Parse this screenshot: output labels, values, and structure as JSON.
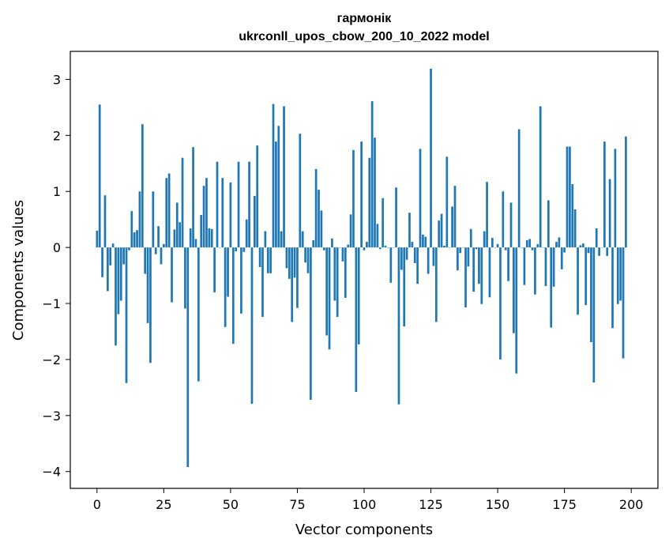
{
  "chart_data": {
    "type": "bar",
    "title": "гармонік",
    "subtitle": "ukrconll_upos_cbow_200_10_2022 model",
    "xlabel": "Vector components",
    "ylabel": "Components values",
    "xlim": [
      -10,
      210
    ],
    "ylim": [
      -4.3,
      3.5
    ],
    "xticks": [
      0,
      25,
      50,
      75,
      100,
      125,
      150,
      175,
      200
    ],
    "yticks": [
      -4,
      -3,
      -2,
      -1,
      0,
      1,
      2,
      3
    ],
    "grid": false,
    "bar_color": "#1f77b4",
    "values": [
      0.3,
      2.55,
      -0.53,
      0.93,
      -0.78,
      -0.32,
      0.07,
      -1.75,
      -1.19,
      -0.95,
      -0.3,
      -2.42,
      -0.05,
      0.65,
      0.27,
      0.31,
      1.0,
      2.2,
      -0.47,
      -1.35,
      -2.06,
      1.0,
      -0.12,
      0.38,
      -0.3,
      0.06,
      1.24,
      1.32,
      -0.98,
      0.32,
      0.8,
      0.45,
      1.6,
      -1.09,
      -3.92,
      0.34,
      1.79,
      0.15,
      -2.39,
      0.58,
      1.1,
      1.24,
      0.34,
      0.33,
      -0.8,
      1.53,
      0.0,
      1.24,
      -1.42,
      -0.88,
      1.16,
      -1.72,
      -0.07,
      1.53,
      -1.18,
      -0.08,
      0.5,
      1.53,
      -2.79,
      0.92,
      1.82,
      -0.35,
      -1.24,
      0.29,
      -0.46,
      -0.46,
      2.56,
      1.89,
      2.17,
      0.29,
      2.52,
      -0.37,
      -0.56,
      -1.33,
      -0.54,
      -1.08,
      2.03,
      0.29,
      -0.27,
      -0.46,
      -2.72,
      0.13,
      1.4,
      1.03,
      0.66,
      -0.05,
      -1.57,
      -1.82,
      0.16,
      -0.95,
      -1.24,
      0.0,
      -0.25,
      -0.9,
      0.05,
      0.59,
      1.74,
      -2.58,
      -1.73,
      1.89,
      -0.05,
      0.1,
      1.6,
      2.61,
      1.96,
      0.42,
      -0.03,
      0.88,
      0.03,
      0.0,
      -0.63,
      0.0,
      1.07,
      -2.8,
      -0.4,
      -1.41,
      -0.22,
      0.62,
      0.1,
      -0.28,
      -0.65,
      1.76,
      0.23,
      0.19,
      -0.47,
      3.19,
      -0.33,
      -1.33,
      0.48,
      0.6,
      0.03,
      1.62,
      0.0,
      0.73,
      1.1,
      -0.41,
      -0.1,
      0.0,
      -1.07,
      -0.34,
      0.33,
      -0.79,
      -0.03,
      -0.65,
      -1.01,
      0.29,
      1.17,
      -0.89,
      0.17,
      0.0,
      0.06,
      -2.0,
      1.0,
      -0.05,
      -0.6,
      0.8,
      -1.53,
      -2.25,
      2.11,
      0.0,
      -0.67,
      0.13,
      0.15,
      -0.05,
      -0.84,
      0.06,
      2.52,
      0.0,
      -0.69,
      0.84,
      -1.43,
      -0.7,
      0.1,
      0.18,
      -0.39,
      -0.09,
      1.8,
      1.8,
      1.13,
      0.68,
      -1.2,
      0.04,
      0.07,
      -1.03,
      -0.1,
      -1.69,
      -2.41,
      0.34,
      -0.15,
      0.0,
      1.89,
      -0.15,
      1.22,
      -1.44,
      1.76,
      -1.01,
      -0.95,
      -1.98,
      1.98
    ]
  }
}
